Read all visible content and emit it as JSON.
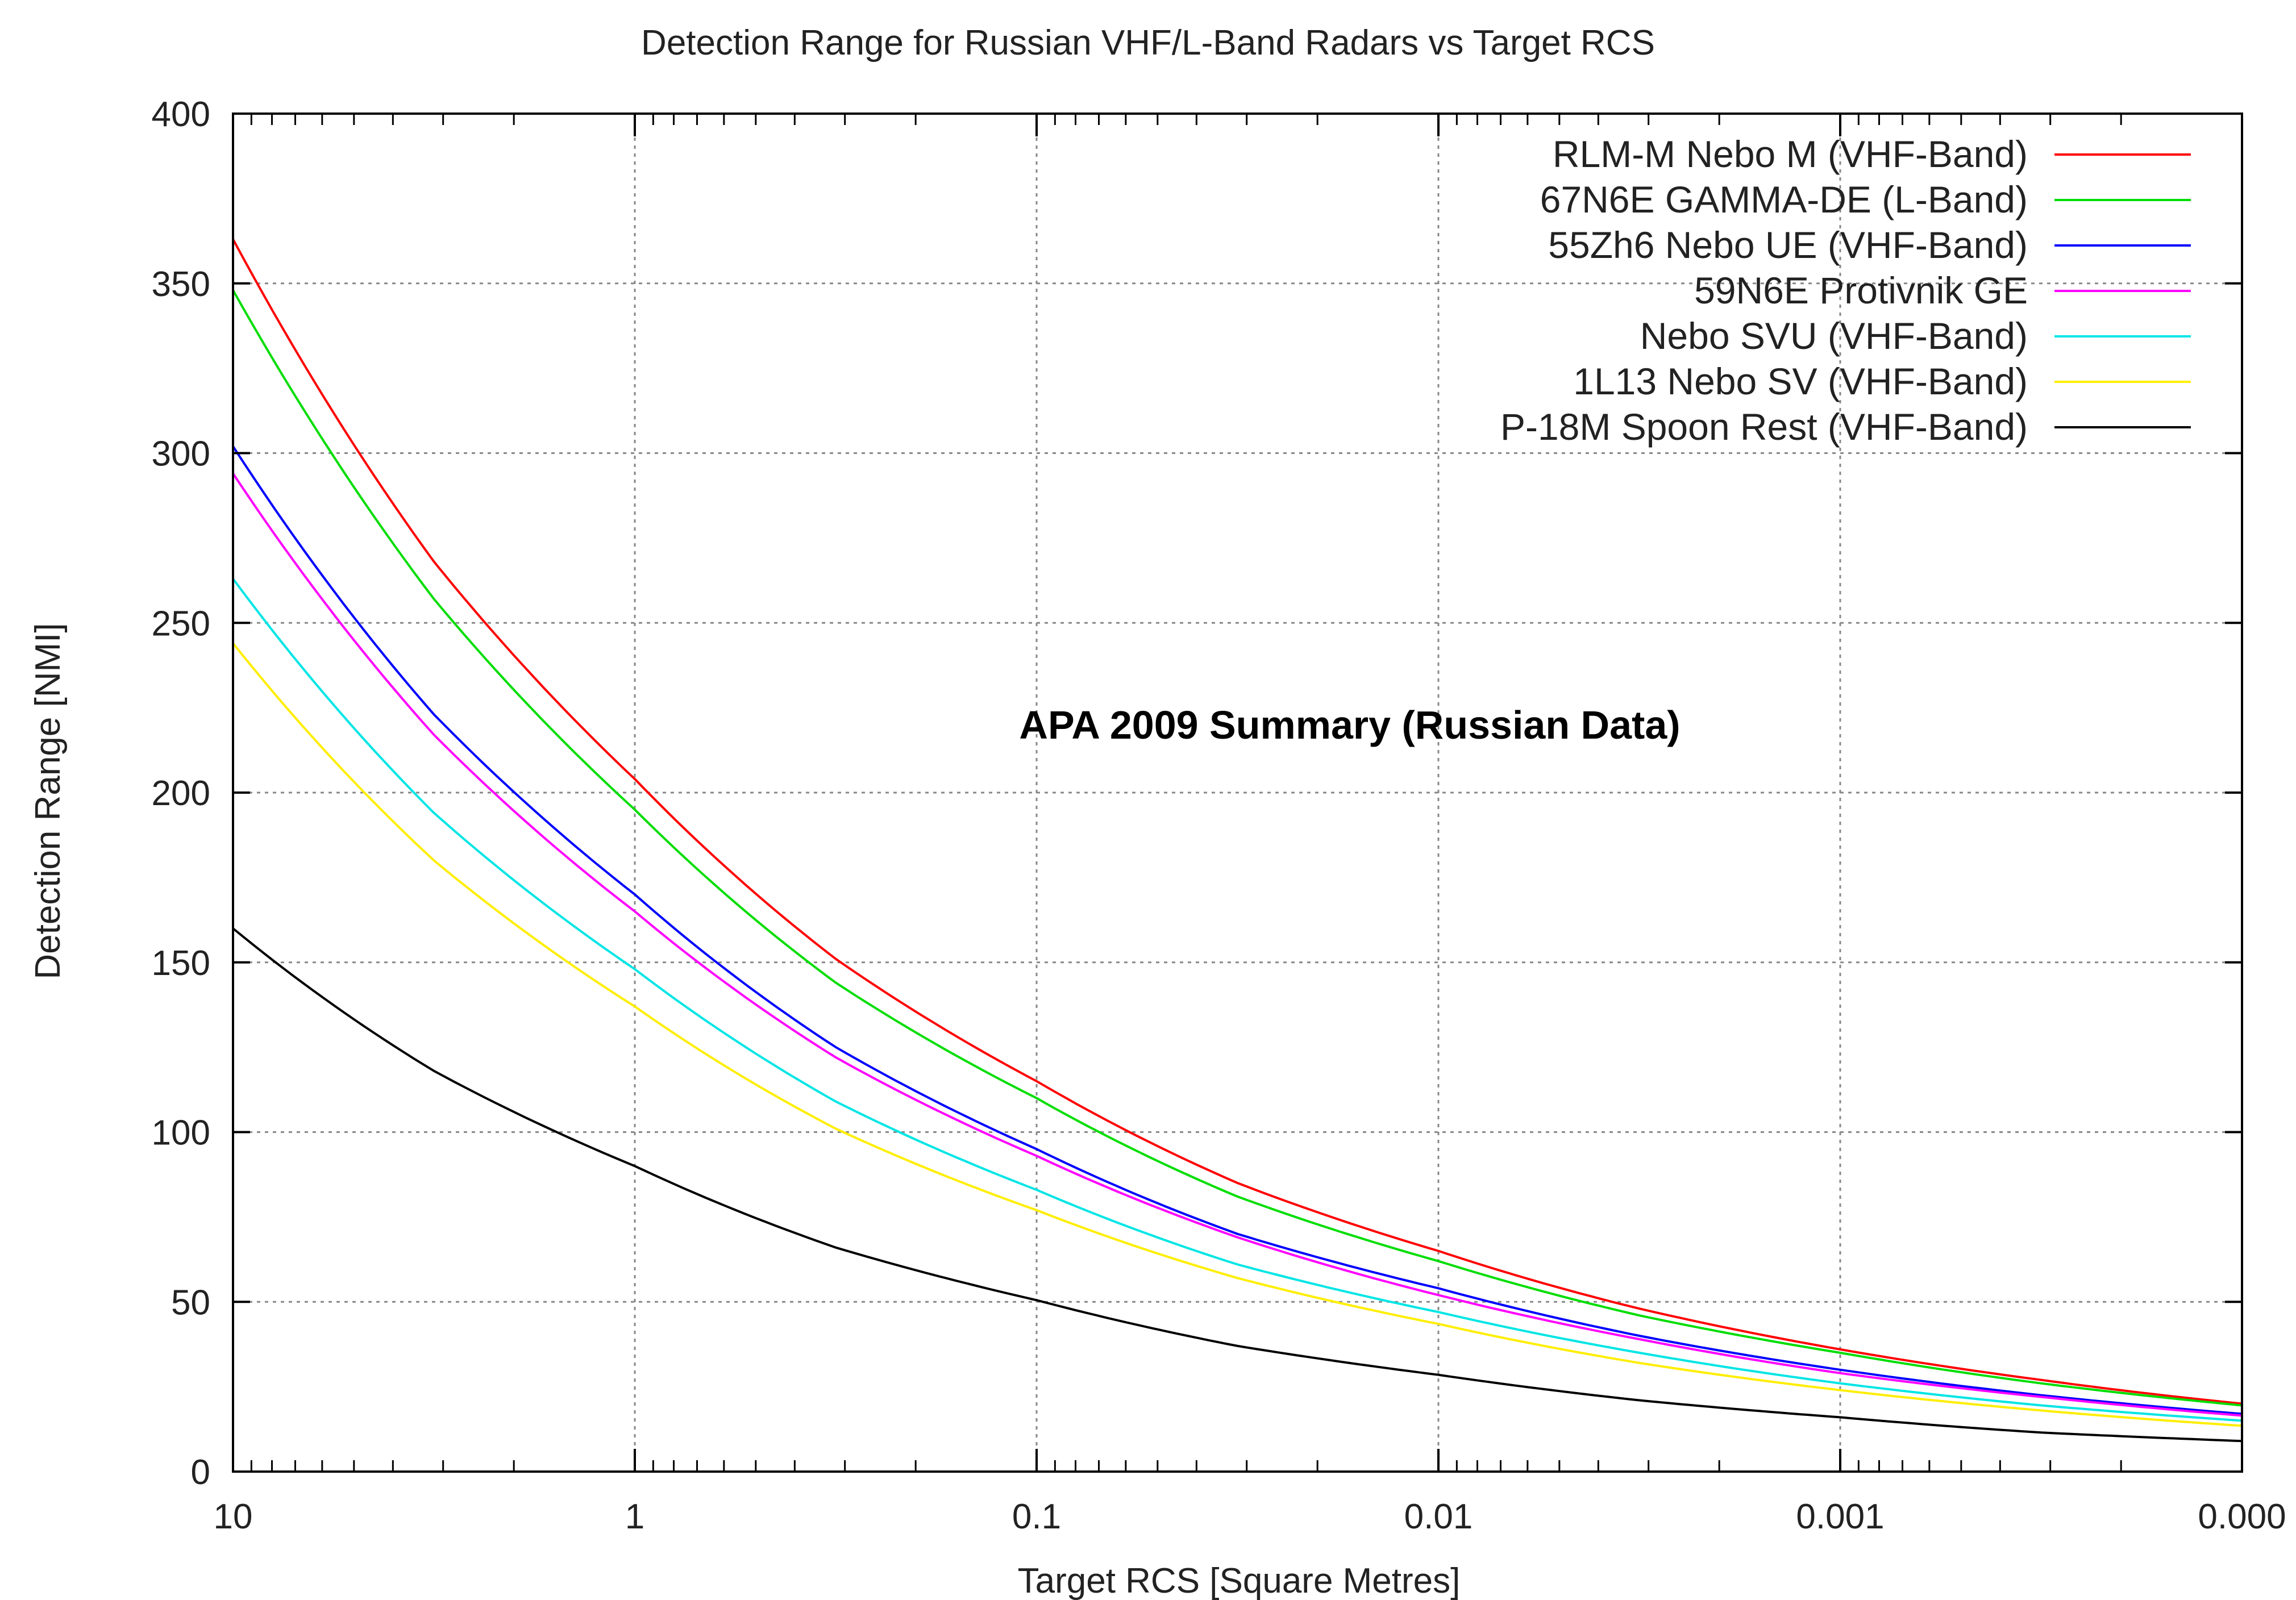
{
  "chart_data": {
    "type": "line",
    "title": "Detection Range for Russian VHF/L-Band Radars vs Target RCS",
    "annotation": "APA 2009 Summary (Russian Data)",
    "xlabel": "Target RCS [Square Metres]",
    "ylabel": "Detection Range [NMI]",
    "x_scale": "log",
    "x_reversed": true,
    "xlim": [
      10,
      0.0001
    ],
    "ylim": [
      0,
      400
    ],
    "grid": true,
    "legend_position": "top-right",
    "x_ticks": [
      {
        "value": 10,
        "label": "10"
      },
      {
        "value": 1,
        "label": "1"
      },
      {
        "value": 0.1,
        "label": "0.1"
      },
      {
        "value": 0.01,
        "label": "0.01"
      },
      {
        "value": 0.001,
        "label": "0.001"
      },
      {
        "value": 0.0001,
        "label": "0.000"
      }
    ],
    "y_ticks": [
      {
        "value": 0,
        "label": "0"
      },
      {
        "value": 50,
        "label": "50"
      },
      {
        "value": 100,
        "label": "100"
      },
      {
        "value": 150,
        "label": "150"
      },
      {
        "value": 200,
        "label": "200"
      },
      {
        "value": 250,
        "label": "250"
      },
      {
        "value": 300,
        "label": "300"
      },
      {
        "value": 350,
        "label": "350"
      },
      {
        "value": 400,
        "label": "400"
      }
    ],
    "x": [
      10,
      3.16,
      1,
      0.316,
      0.1,
      0.0316,
      0.01,
      0.00316,
      0.001,
      0.000316,
      0.0001
    ],
    "series": [
      {
        "name": "RLM-M Nebo M (VHF-Band)",
        "color": "#ff0000",
        "values": [
          363,
          268,
          204,
          151,
          115,
          85,
          65,
          48,
          36,
          27,
          20
        ]
      },
      {
        "name": "67N6E GAMMA-DE (L-Band)",
        "color": "#00dd00",
        "values": [
          348,
          257,
          195,
          144,
          110,
          81,
          62,
          46,
          35,
          26,
          19.5
        ]
      },
      {
        "name": "55Zh6 Nebo UE (VHF-Band)",
        "color": "#0000ff",
        "values": [
          302,
          223,
          170,
          125,
          95,
          70,
          54,
          40,
          30,
          22.5,
          17
        ]
      },
      {
        "name": "59N6E Protivnik GE",
        "color": "#ff00ff",
        "values": [
          294,
          217,
          165,
          122,
          93,
          69,
          52,
          39,
          29,
          22,
          16.5
        ]
      },
      {
        "name": "Nebo SVU (VHF-Band)",
        "color": "#00e5e5",
        "values": [
          263,
          194,
          148,
          109,
          83,
          61,
          47,
          35,
          26,
          19.5,
          15
        ]
      },
      {
        "name": "1L13 Nebo SV (VHF-Band)",
        "color": "#ffee00",
        "values": [
          244,
          180,
          137,
          101,
          77,
          57,
          43.5,
          32,
          24,
          18,
          13.5
        ]
      },
      {
        "name": "P-18M Spoon Rest (VHF-Band)",
        "color": "#000000",
        "values": [
          160,
          118,
          90,
          66,
          50.5,
          37,
          28.5,
          21,
          16,
          11.5,
          9
        ]
      }
    ]
  }
}
